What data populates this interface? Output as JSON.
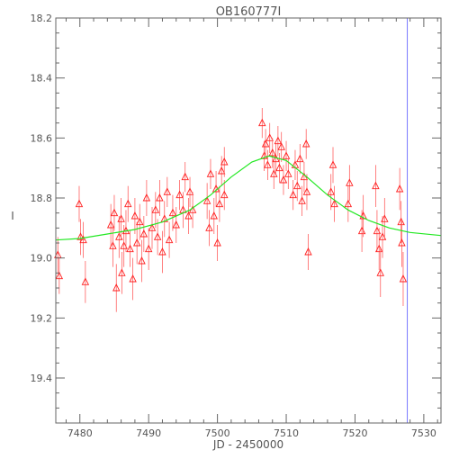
{
  "chart_data": {
    "type": "scatter",
    "title": "OB160777I",
    "xlabel": "JD - 2450000",
    "ylabel": "I",
    "xlim": [
      7476.5,
      7532.5
    ],
    "ylim": [
      19.55,
      18.2
    ],
    "y_inverted": true,
    "grid": false,
    "x_ticks": [
      "7480",
      "7490",
      "7500",
      "7510",
      "7520",
      "7530"
    ],
    "y_ticks": [
      "18.2",
      "18.4",
      "18.6",
      "18.8",
      "19.0",
      "19.2",
      "19.4"
    ],
    "colors": {
      "points": "#ff2020",
      "errorbars": "#ff6060",
      "model": "#22e822",
      "marker": "#7777ff",
      "axes": "#666666"
    },
    "model_curve": {
      "x": [
        7476.5,
        7480,
        7484,
        7488,
        7492,
        7496,
        7499,
        7502,
        7505,
        7507.5,
        7510,
        7513,
        7516,
        7519,
        7522,
        7525,
        7528,
        7532.5
      ],
      "y": [
        18.94,
        18.935,
        18.92,
        18.905,
        18.88,
        18.84,
        18.79,
        18.73,
        18.68,
        18.66,
        18.675,
        18.73,
        18.79,
        18.84,
        18.875,
        18.9,
        18.915,
        18.925
      ]
    },
    "marker_line_x": 7527.6,
    "series": [
      {
        "points": [
          [
            7476.8,
            18.99,
            0.06
          ],
          [
            7477.0,
            19.06,
            0.06
          ],
          [
            7479.9,
            18.82,
            0.06
          ],
          [
            7480.1,
            18.93,
            0.06
          ],
          [
            7480.5,
            18.94,
            0.06
          ],
          [
            7480.8,
            19.08,
            0.07
          ],
          [
            7484.5,
            18.89,
            0.07
          ],
          [
            7484.8,
            18.96,
            0.07
          ],
          [
            7485.0,
            18.85,
            0.06
          ],
          [
            7485.3,
            19.1,
            0.08
          ],
          [
            7485.7,
            18.93,
            0.07
          ],
          [
            7486.0,
            18.87,
            0.07
          ],
          [
            7486.1,
            19.05,
            0.07
          ],
          [
            7486.4,
            18.96,
            0.07
          ],
          [
            7486.7,
            18.91,
            0.07
          ],
          [
            7487.0,
            18.82,
            0.06
          ],
          [
            7487.3,
            18.97,
            0.06
          ],
          [
            7487.7,
            19.07,
            0.07
          ],
          [
            7488.0,
            18.86,
            0.06
          ],
          [
            7488.3,
            18.95,
            0.07
          ],
          [
            7488.7,
            18.88,
            0.06
          ],
          [
            7489.0,
            19.01,
            0.07
          ],
          [
            7489.3,
            18.92,
            0.06
          ],
          [
            7489.7,
            18.8,
            0.06
          ],
          [
            7490.0,
            18.97,
            0.07
          ],
          [
            7490.5,
            18.9,
            0.07
          ],
          [
            7491.0,
            18.84,
            0.06
          ],
          [
            7491.3,
            18.93,
            0.06
          ],
          [
            7491.6,
            18.8,
            0.06
          ],
          [
            7492.0,
            18.98,
            0.07
          ],
          [
            7492.3,
            18.87,
            0.06
          ],
          [
            7492.7,
            18.78,
            0.05
          ],
          [
            7493.0,
            18.94,
            0.06
          ],
          [
            7493.5,
            18.85,
            0.06
          ],
          [
            7494.0,
            18.89,
            0.06
          ],
          [
            7494.5,
            18.79,
            0.05
          ],
          [
            7495.0,
            18.84,
            0.06
          ],
          [
            7495.3,
            18.73,
            0.05
          ],
          [
            7495.8,
            18.86,
            0.06
          ],
          [
            7496.0,
            18.78,
            0.05
          ],
          [
            7496.4,
            18.84,
            0.06
          ],
          [
            7498.5,
            18.81,
            0.06
          ],
          [
            7498.8,
            18.9,
            0.06
          ],
          [
            7499.0,
            18.72,
            0.05
          ],
          [
            7499.5,
            18.86,
            0.06
          ],
          [
            7499.8,
            18.77,
            0.06
          ],
          [
            7500.0,
            18.95,
            0.06
          ],
          [
            7500.3,
            18.82,
            0.06
          ],
          [
            7500.6,
            18.71,
            0.05
          ],
          [
            7501.0,
            18.68,
            0.05
          ],
          [
            7501.0,
            18.79,
            0.05
          ],
          [
            7506.5,
            18.55,
            0.05
          ],
          [
            7506.8,
            18.66,
            0.05
          ],
          [
            7507.0,
            18.62,
            0.05
          ],
          [
            7507.3,
            18.69,
            0.05
          ],
          [
            7507.6,
            18.6,
            0.05
          ],
          [
            7508.0,
            18.65,
            0.05
          ],
          [
            7508.2,
            18.72,
            0.05
          ],
          [
            7508.5,
            18.67,
            0.05
          ],
          [
            7508.8,
            18.61,
            0.05
          ],
          [
            7509.0,
            18.7,
            0.05
          ],
          [
            7509.3,
            18.63,
            0.05
          ],
          [
            7509.6,
            18.74,
            0.05
          ],
          [
            7510.0,
            18.66,
            0.05
          ],
          [
            7510.3,
            18.72,
            0.05
          ],
          [
            7511.0,
            18.79,
            0.05
          ],
          [
            7511.3,
            18.69,
            0.05
          ],
          [
            7511.6,
            18.76,
            0.05
          ],
          [
            7512.0,
            18.67,
            0.05
          ],
          [
            7512.3,
            18.81,
            0.05
          ],
          [
            7512.6,
            18.73,
            0.05
          ],
          [
            7512.9,
            18.62,
            0.05
          ],
          [
            7513.0,
            18.78,
            0.06
          ],
          [
            7513.2,
            18.98,
            0.06
          ],
          [
            7516.5,
            18.78,
            0.06
          ],
          [
            7516.8,
            18.69,
            0.06
          ],
          [
            7517.0,
            18.82,
            0.06
          ],
          [
            7519.0,
            18.82,
            0.06
          ],
          [
            7519.2,
            18.75,
            0.06
          ],
          [
            7521.0,
            18.91,
            0.07
          ],
          [
            7521.2,
            18.86,
            0.07
          ],
          [
            7523.0,
            18.76,
            0.07
          ],
          [
            7523.2,
            18.91,
            0.07
          ],
          [
            7523.5,
            18.97,
            0.07
          ],
          [
            7523.7,
            19.05,
            0.08
          ],
          [
            7524.0,
            18.93,
            0.07
          ],
          [
            7524.3,
            18.87,
            0.07
          ],
          [
            7526.5,
            18.77,
            0.07
          ],
          [
            7526.7,
            18.88,
            0.07
          ],
          [
            7526.8,
            18.95,
            0.08
          ],
          [
            7527.0,
            19.07,
            0.09
          ]
        ]
      }
    ]
  }
}
